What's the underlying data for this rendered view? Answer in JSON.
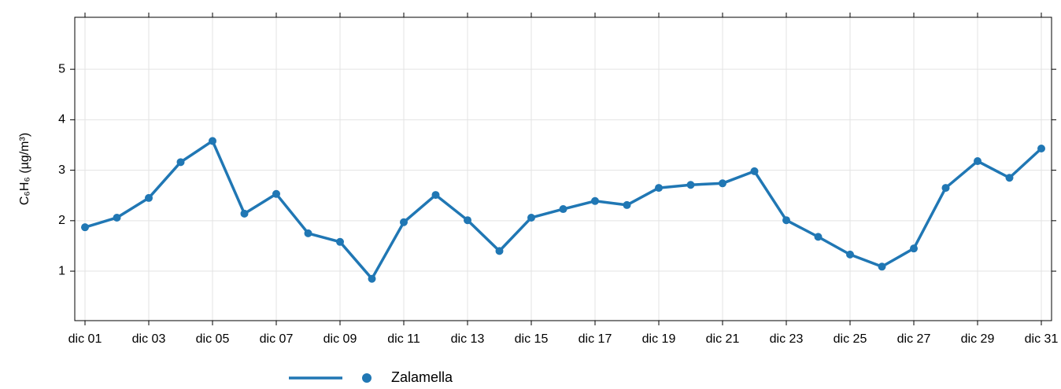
{
  "chart_data": {
    "type": "line",
    "y_label": "C₆H₆ (µg/m³)",
    "categories": [
      "dic 01",
      null,
      "dic 03",
      null,
      "dic 05",
      null,
      "dic 07",
      null,
      "dic 09",
      null,
      "dic 11",
      null,
      "dic 13",
      null,
      "dic 15",
      null,
      "dic 17",
      null,
      "dic 19",
      null,
      "dic 21",
      null,
      "dic 23",
      null,
      "dic 25",
      null,
      "dic 27",
      null,
      "dic 29",
      null,
      "dic 31"
    ],
    "series": [
      {
        "name": "Zalamella",
        "color": "#2077b4",
        "values": [
          1.87,
          2.06,
          2.45,
          3.16,
          3.58,
          2.14,
          2.53,
          1.75,
          1.58,
          0.85,
          1.97,
          2.51,
          2.01,
          1.4,
          2.06,
          2.23,
          2.39,
          2.31,
          2.65,
          2.71,
          2.74,
          2.98,
          2.01,
          1.68,
          1.33,
          1.09,
          1.45,
          2.65,
          3.18,
          2.85,
          3.43
        ]
      }
    ],
    "ylim": [
      0.02,
      6.03
    ],
    "yticks": [
      1,
      2,
      3,
      4,
      5
    ],
    "grid": true,
    "legend": "bottom"
  }
}
